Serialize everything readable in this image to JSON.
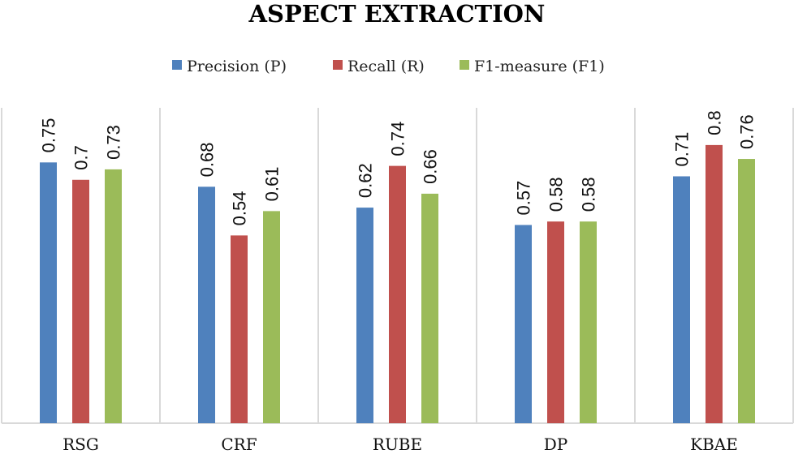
{
  "chart_data": {
    "type": "bar",
    "title": "ASPECT EXTRACTION",
    "categories": [
      "RSG",
      "CRF",
      "RUBE",
      "DP",
      "KBAE"
    ],
    "series": [
      {
        "name": "Precision (P)",
        "color": "#4F81BD",
        "values": [
          0.75,
          0.68,
          0.62,
          0.57,
          0.71
        ],
        "labels": [
          "0.75",
          "0.68",
          "0.62",
          "0.57",
          "0.71"
        ]
      },
      {
        "name": "Recall (R)",
        "color": "#C0504D",
        "values": [
          0.7,
          0.54,
          0.74,
          0.58,
          0.8
        ],
        "labels": [
          "0.7",
          "0.54",
          "0.74",
          "0.58",
          "0.8"
        ]
      },
      {
        "name": "F1-measure (F1)",
        "color": "#9BBB59",
        "values": [
          0.73,
          0.61,
          0.66,
          0.58,
          0.76
        ],
        "labels": [
          "0.73",
          "0.61",
          "0.66",
          "0.58",
          "0.76"
        ]
      }
    ],
    "xlabel": "",
    "ylabel": "",
    "ylim": [
      0,
      0.9
    ],
    "grid": false,
    "legend": "top",
    "data_labels": "rotated"
  }
}
